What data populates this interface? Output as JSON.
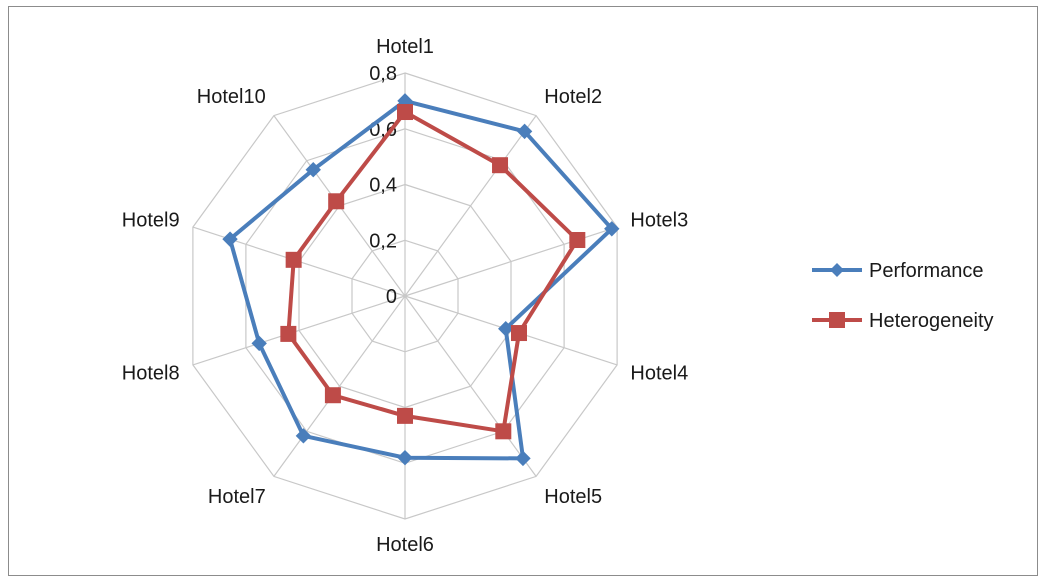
{
  "chart_data": {
    "type": "radar",
    "categories": [
      "Hotel1",
      "Hotel2",
      "Hotel3",
      "Hotel4",
      "Hotel5",
      "Hotel6",
      "Hotel7",
      "Hotel8",
      "Hotel9",
      "Hotel10"
    ],
    "rlim": [
      0,
      0.8
    ],
    "ticks": [
      "0",
      "0,2",
      "0,4",
      "0,6",
      "0,8"
    ],
    "tick_values": [
      0,
      0.2,
      0.4,
      0.6,
      0.8
    ],
    "grid": true,
    "legend_position": "right",
    "series": [
      {
        "name": "Performance",
        "color": "#4a7ebb",
        "marker": "diamond",
        "values": [
          0.7,
          0.73,
          0.78,
          0.38,
          0.72,
          0.58,
          0.62,
          0.55,
          0.66,
          0.56
        ]
      },
      {
        "name": "Heterogeneity",
        "color": "#be4b48",
        "marker": "square",
        "values": [
          0.66,
          0.58,
          0.65,
          0.43,
          0.6,
          0.43,
          0.44,
          0.44,
          0.42,
          0.42
        ]
      }
    ]
  }
}
